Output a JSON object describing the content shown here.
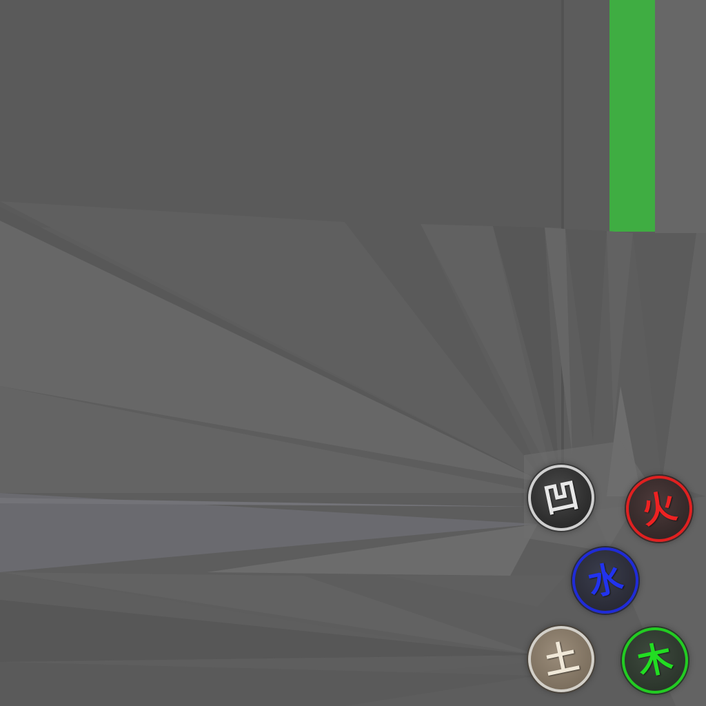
{
  "background": {
    "base_color": "#5d5d5d",
    "top_panel_color": "#5a5a5a",
    "right_strip_color": "#666666",
    "bar_color": "#3fad42"
  },
  "emblems": [
    {
      "name": "white-emblem",
      "glyph": "凹",
      "ring_color": "#cfcfcf"
    },
    {
      "name": "red-emblem",
      "glyph": "火",
      "ring_color": "#e02020"
    },
    {
      "name": "blue-emblem",
      "glyph": "水",
      "ring_color": "#1f2bd8"
    },
    {
      "name": "earth-emblem",
      "glyph": "土",
      "ring_color": "#d2cfc8"
    },
    {
      "name": "green-emblem",
      "glyph": "木",
      "ring_color": "#22cc22"
    }
  ]
}
